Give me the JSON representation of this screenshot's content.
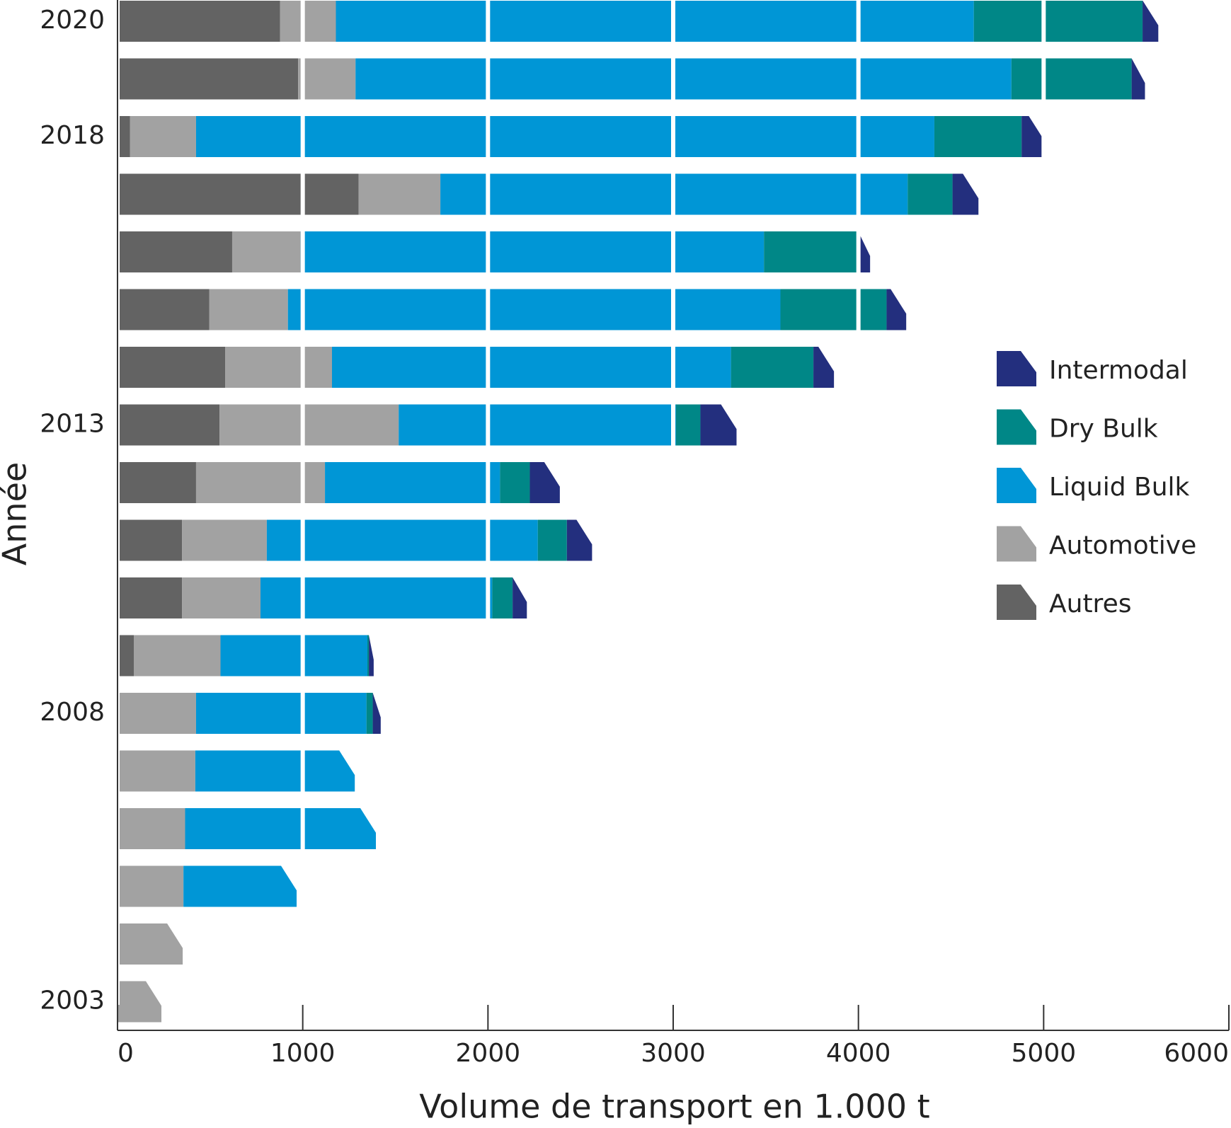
{
  "chart_data": {
    "type": "bar",
    "orientation": "horizontal",
    "stacked": true,
    "xlabel": "Volume de transport en 1.000 t",
    "ylabel": "Année",
    "categories": [
      "2020",
      null,
      "2018",
      null,
      null,
      null,
      null,
      "2013",
      null,
      null,
      null,
      null,
      "2008",
      null,
      null,
      null,
      null,
      "2003"
    ],
    "series": [
      {
        "name": "Autres",
        "color": "#636363",
        "values": [
          878,
          975,
          68,
          1302,
          619,
          496,
          581,
          551,
          424,
          348,
          348,
          89,
          0,
          0,
          0,
          0,
          0,
          0
        ]
      },
      {
        "name": "Automotive",
        "color": "#a2a2a2",
        "values": [
          301,
          310,
          356,
          441,
          369,
          424,
          577,
          967,
          696,
          458,
          424,
          467,
          424,
          420,
          365,
          356,
          352,
          237
        ]
      },
      {
        "name": "Liquid Bulk",
        "color": "#0096d6",
        "values": [
          3444,
          3541,
          3986,
          2523,
          2502,
          2659,
          2154,
          1497,
          945,
          1463,
          1251,
          793,
          920,
          861,
          1030,
          611,
          0,
          0
        ]
      },
      {
        "name": "Dry Bulk",
        "color": "#008787",
        "values": [
          911,
          649,
          471,
          242,
          509,
          573,
          445,
          132,
          161,
          157,
          110,
          8,
          34,
          0,
          0,
          0,
          0,
          0
        ]
      },
      {
        "name": "Intermodal",
        "color": "#232f7e",
        "values": [
          85,
          72,
          123,
          140,
          64,
          106,
          111,
          195,
          162,
          136,
          77,
          26,
          43,
          0,
          0,
          0,
          0,
          0
        ]
      }
    ],
    "xlim": [
      0,
      6000
    ],
    "xticks": [
      0,
      1000,
      2000,
      3000,
      4000,
      5000,
      6000
    ],
    "grid": true,
    "legend": "right"
  }
}
